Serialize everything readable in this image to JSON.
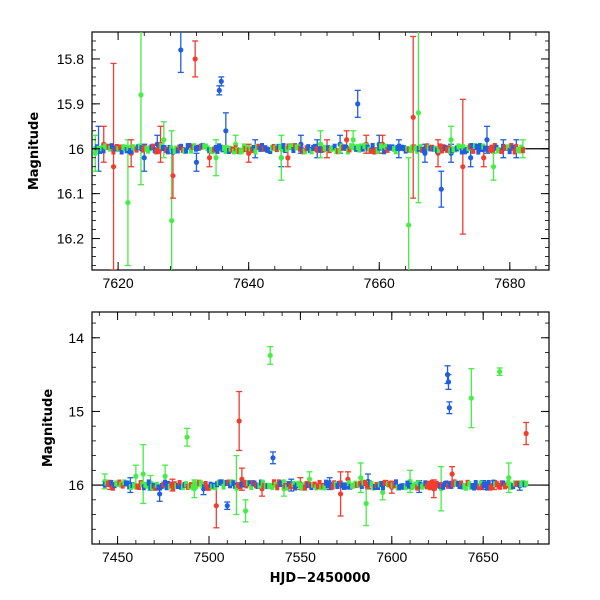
{
  "chart_data": [
    {
      "type": "scatter",
      "panel": "top",
      "title": "",
      "xlabel": "",
      "ylabel": "Magnitude",
      "xlim": [
        7616,
        7686
      ],
      "ylim": [
        16.27,
        15.74
      ],
      "y_inverted": true,
      "x_ticks": [
        7620,
        7640,
        7660,
        7680
      ],
      "y_ticks": [
        15.8,
        15.9,
        16,
        16.1,
        16.2
      ],
      "x_tick_labels": [
        "7620",
        "7640",
        "7660",
        "7680"
      ],
      "y_tick_labels": [
        "15.8",
        "15.9",
        "16",
        "16.1",
        "16.2"
      ],
      "grid": false,
      "reference_line": 16.0,
      "colors": {
        "blue": "#1f5fe0",
        "green": "#44ee44",
        "red": "#f23c2e"
      },
      "series": [
        {
          "color_key": "blue",
          "points": [
            {
              "x": 7617,
              "y": 16.0,
              "err": 0.05
            },
            {
              "x": 7624,
              "y": 16.02,
              "err": 0.03
            },
            {
              "x": 7626,
              "y": 15.99,
              "err": 0.02
            },
            {
              "x": 7629.6,
              "y": 15.78,
              "err": 0.05
            },
            {
              "x": 7632,
              "y": 16.03,
              "err": 0.02
            },
            {
              "x": 7635.5,
              "y": 15.87,
              "err": 0.01
            },
            {
              "x": 7635.8,
              "y": 15.85,
              "err": 0.01
            },
            {
              "x": 7636.5,
              "y": 15.96,
              "err": 0.04
            },
            {
              "x": 7641,
              "y": 16.0,
              "err": 0.02
            },
            {
              "x": 7645,
              "y": 16.02,
              "err": 0.02
            },
            {
              "x": 7648,
              "y": 15.99,
              "err": 0.02
            },
            {
              "x": 7650.5,
              "y": 16.0,
              "err": 0.02
            },
            {
              "x": 7654,
              "y": 15.99,
              "err": 0.02
            },
            {
              "x": 7656.7,
              "y": 15.9,
              "err": 0.03
            },
            {
              "x": 7660,
              "y": 15.99,
              "err": 0.02
            },
            {
              "x": 7663,
              "y": 16.0,
              "err": 0.02
            },
            {
              "x": 7667,
              "y": 16.01,
              "err": 0.02
            },
            {
              "x": 7669.5,
              "y": 16.09,
              "err": 0.04
            },
            {
              "x": 7671,
              "y": 16.01,
              "err": 0.02
            },
            {
              "x": 7674,
              "y": 16.02,
              "err": 0.02
            },
            {
              "x": 7676.5,
              "y": 15.98,
              "err": 0.03
            },
            {
              "x": 7679,
              "y": 16.0,
              "err": 0.02
            },
            {
              "x": 7681,
              "y": 16.0,
              "err": 0.02
            }
          ]
        },
        {
          "color_key": "green",
          "points": [
            {
              "x": 7616.5,
              "y": 16.01,
              "err": 0.04
            },
            {
              "x": 7621.5,
              "y": 16.12,
              "err": 0.14
            },
            {
              "x": 7623.5,
              "y": 15.88,
              "err": 0.2
            },
            {
              "x": 7627,
              "y": 15.98,
              "err": 0.04
            },
            {
              "x": 7628.2,
              "y": 16.16,
              "err": 0.2
            },
            {
              "x": 7635,
              "y": 16.02,
              "err": 0.04
            },
            {
              "x": 7638,
              "y": 15.99,
              "err": 0.02
            },
            {
              "x": 7645,
              "y": 16.02,
              "err": 0.05
            },
            {
              "x": 7651,
              "y": 15.99,
              "err": 0.03
            },
            {
              "x": 7656,
              "y": 15.98,
              "err": 0.02
            },
            {
              "x": 7664.5,
              "y": 16.17,
              "err": 0.15
            },
            {
              "x": 7666,
              "y": 15.92,
              "err": 0.2
            },
            {
              "x": 7671,
              "y": 15.98,
              "err": 0.03
            },
            {
              "x": 7677.5,
              "y": 16.04,
              "err": 0.03
            },
            {
              "x": 7682,
              "y": 16.0,
              "err": 0.02
            }
          ]
        },
        {
          "color_key": "red",
          "points": [
            {
              "x": 7617.8,
              "y": 15.99,
              "err": 0.04
            },
            {
              "x": 7619.3,
              "y": 16.04,
              "err": 0.23
            },
            {
              "x": 7622,
              "y": 16.01,
              "err": 0.03
            },
            {
              "x": 7626.5,
              "y": 15.99,
              "err": 0.04
            },
            {
              "x": 7628.4,
              "y": 16.06,
              "err": 0.05
            },
            {
              "x": 7631.8,
              "y": 15.8,
              "err": 0.04
            },
            {
              "x": 7634,
              "y": 16.02,
              "err": 0.02
            },
            {
              "x": 7640,
              "y": 16.01,
              "err": 0.02
            },
            {
              "x": 7646,
              "y": 16.02,
              "err": 0.02
            },
            {
              "x": 7652,
              "y": 16.0,
              "err": 0.02
            },
            {
              "x": 7655,
              "y": 15.98,
              "err": 0.02
            },
            {
              "x": 7658,
              "y": 15.99,
              "err": 0.02
            },
            {
              "x": 7660.5,
              "y": 15.99,
              "err": 0.02
            },
            {
              "x": 7665.2,
              "y": 15.93,
              "err": 0.18
            },
            {
              "x": 7669,
              "y": 16.01,
              "err": 0.03
            },
            {
              "x": 7672.8,
              "y": 16.04,
              "err": 0.15
            },
            {
              "x": 7676,
              "y": 16.02,
              "err": 0.02
            }
          ]
        }
      ]
    },
    {
      "type": "scatter",
      "panel": "bottom",
      "title": "",
      "xlabel": "HJD−2450000",
      "ylabel": "Magnitude",
      "xlim": [
        7436,
        7686
      ],
      "ylim": [
        16.8,
        13.65
      ],
      "y_inverted": true,
      "x_ticks": [
        7450,
        7500,
        7550,
        7600,
        7650
      ],
      "y_ticks": [
        14,
        15,
        16
      ],
      "x_tick_labels": [
        "7450",
        "7500",
        "7550",
        "7600",
        "7650"
      ],
      "y_tick_labels": [
        "14",
        "15",
        "16"
      ],
      "grid": false,
      "reference_line": 16.0,
      "colors": {
        "blue": "#1f5fe0",
        "green": "#44ee44",
        "red": "#f23c2e"
      },
      "series": [
        {
          "color_key": "blue",
          "points": [
            {
              "x": 7457,
              "y": 16.0,
              "err": 0.1
            },
            {
              "x": 7473,
              "y": 16.12,
              "err": 0.1
            },
            {
              "x": 7497,
              "y": 16.05,
              "err": 0.08
            },
            {
              "x": 7510,
              "y": 16.28,
              "err": 0.05
            },
            {
              "x": 7535,
              "y": 15.63,
              "err": 0.08
            },
            {
              "x": 7545,
              "y": 16.0,
              "err": 0.08
            },
            {
              "x": 7566,
              "y": 15.98,
              "err": 0.08
            },
            {
              "x": 7587,
              "y": 15.95,
              "err": 0.1
            },
            {
              "x": 7615,
              "y": 16.02,
              "err": 0.08
            },
            {
              "x": 7630.5,
              "y": 14.5,
              "err": 0.12
            },
            {
              "x": 7631,
              "y": 14.6,
              "err": 0.1
            },
            {
              "x": 7631.5,
              "y": 14.95,
              "err": 0.08
            },
            {
              "x": 7650,
              "y": 16.0,
              "err": 0.06
            },
            {
              "x": 7670,
              "y": 16.01,
              "err": 0.06
            }
          ]
        },
        {
          "color_key": "green",
          "points": [
            {
              "x": 7443,
              "y": 15.95,
              "err": 0.1
            },
            {
              "x": 7460,
              "y": 15.88,
              "err": 0.15
            },
            {
              "x": 7464,
              "y": 15.85,
              "err": 0.4
            },
            {
              "x": 7468,
              "y": 15.97,
              "err": 0.1
            },
            {
              "x": 7476,
              "y": 15.88,
              "err": 0.15
            },
            {
              "x": 7488,
              "y": 15.35,
              "err": 0.12
            },
            {
              "x": 7492,
              "y": 16.05,
              "err": 0.12
            },
            {
              "x": 7515,
              "y": 16.0,
              "err": 0.4
            },
            {
              "x": 7520,
              "y": 16.35,
              "err": 0.15
            },
            {
              "x": 7533.5,
              "y": 14.24,
              "err": 0.12
            },
            {
              "x": 7541,
              "y": 16.05,
              "err": 0.1
            },
            {
              "x": 7555,
              "y": 15.92,
              "err": 0.1
            },
            {
              "x": 7583,
              "y": 15.9,
              "err": 0.2
            },
            {
              "x": 7586,
              "y": 16.25,
              "err": 0.3
            },
            {
              "x": 7595,
              "y": 16.1,
              "err": 0.1
            },
            {
              "x": 7610,
              "y": 15.95,
              "err": 0.15
            },
            {
              "x": 7627,
              "y": 16.05,
              "err": 0.3
            },
            {
              "x": 7643.5,
              "y": 14.82,
              "err": 0.4
            },
            {
              "x": 7659,
              "y": 14.46,
              "err": 0.05
            },
            {
              "x": 7664,
              "y": 15.9,
              "err": 0.2
            }
          ]
        },
        {
          "color_key": "red",
          "points": [
            {
              "x": 7446,
              "y": 16.0,
              "err": 0.06
            },
            {
              "x": 7480,
              "y": 16.0,
              "err": 0.08
            },
            {
              "x": 7504,
              "y": 16.28,
              "err": 0.3
            },
            {
              "x": 7516.5,
              "y": 15.13,
              "err": 0.4
            },
            {
              "x": 7518,
              "y": 15.92,
              "err": 0.15
            },
            {
              "x": 7529,
              "y": 16.05,
              "err": 0.1
            },
            {
              "x": 7550,
              "y": 15.98,
              "err": 0.08
            },
            {
              "x": 7572,
              "y": 16.12,
              "err": 0.3
            },
            {
              "x": 7576,
              "y": 15.92,
              "err": 0.1
            },
            {
              "x": 7600,
              "y": 16.03,
              "err": 0.08
            },
            {
              "x": 7623,
              "y": 16.05,
              "err": 0.12
            },
            {
              "x": 7633,
              "y": 15.85,
              "err": 0.1
            },
            {
              "x": 7656,
              "y": 16.0,
              "err": 0.06
            },
            {
              "x": 7673.5,
              "y": 15.3,
              "err": 0.15
            }
          ]
        }
      ]
    }
  ]
}
